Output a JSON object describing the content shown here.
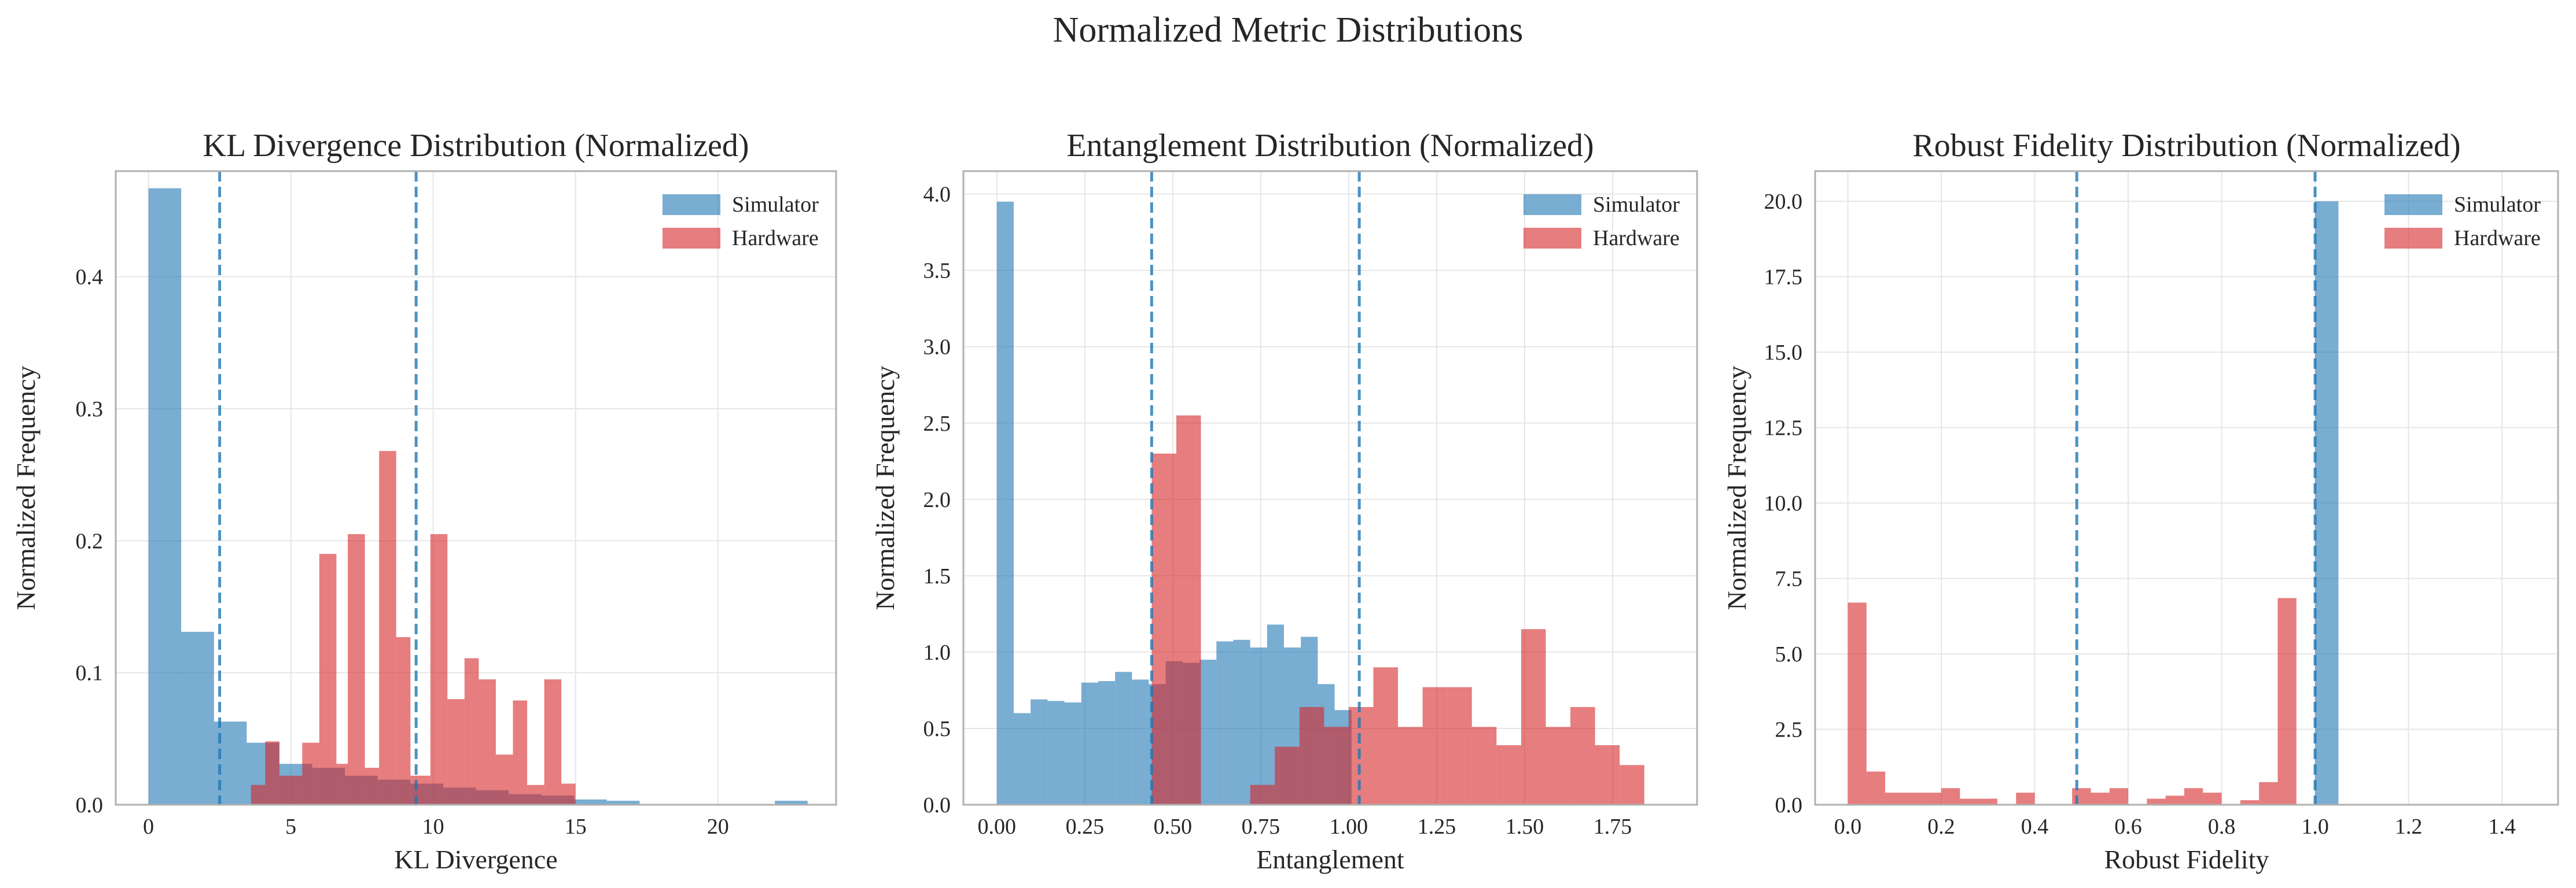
{
  "figure_title": "Normalized Metric Distributions",
  "colors": {
    "simulator": "#1f77b4",
    "hardware": "#d62728",
    "mean_line": "#1f77b4",
    "grid": "#e6e6e6",
    "spine": "#b0b0b0"
  },
  "chart_data": [
    {
      "type": "histogram",
      "title": "KL Divergence Distribution (Normalized)",
      "xlabel": "KL Divergence",
      "ylabel": "Normalized Frequency",
      "xlim": [
        -1.15,
        24.15
      ],
      "ylim": [
        0,
        0.48
      ],
      "xticks": [
        0,
        5,
        10,
        15,
        20
      ],
      "xtick_labels": [
        "0",
        "5",
        "10",
        "15",
        "20"
      ],
      "yticks": [
        0.0,
        0.1,
        0.2,
        0.3,
        0.4
      ],
      "ytick_labels": [
        "0.0",
        "0.1",
        "0.2",
        "0.3",
        "0.4"
      ],
      "legend": {
        "position": "upper right",
        "entries": [
          "Simulator",
          "Hardware"
        ]
      },
      "grid": true,
      "mean_lines": [
        2.5,
        9.4
      ],
      "series": [
        {
          "name": "Simulator",
          "color": "#1f77b4",
          "bins": [
            [
              0,
              1.15,
              0.467
            ],
            [
              1.15,
              2.3,
              0.131
            ],
            [
              2.3,
              3.45,
              0.063
            ],
            [
              3.45,
              4.6,
              0.047
            ],
            [
              4.6,
              5.75,
              0.031
            ],
            [
              5.75,
              6.9,
              0.028
            ],
            [
              6.9,
              8.05,
              0.022
            ],
            [
              8.05,
              9.2,
              0.019
            ],
            [
              9.2,
              10.35,
              0.016
            ],
            [
              10.35,
              11.5,
              0.013
            ],
            [
              11.5,
              12.65,
              0.011
            ],
            [
              12.65,
              13.8,
              0.008
            ],
            [
              13.8,
              14.95,
              0.007
            ],
            [
              14.95,
              16.1,
              0.004
            ],
            [
              16.1,
              17.25,
              0.003
            ],
            [
              22.0,
              23.15,
              0.003
            ]
          ]
        },
        {
          "name": "Hardware",
          "color": "#d62728",
          "bins": [
            [
              3.6,
              4.1,
              0.015
            ],
            [
              4.1,
              4.6,
              0.048
            ],
            [
              4.6,
              5.4,
              0.022
            ],
            [
              5.4,
              6.0,
              0.047
            ],
            [
              6.0,
              6.6,
              0.19
            ],
            [
              6.6,
              7.0,
              0.031
            ],
            [
              7.0,
              7.6,
              0.205
            ],
            [
              7.6,
              8.1,
              0.028
            ],
            [
              8.1,
              8.7,
              0.268
            ],
            [
              8.7,
              9.2,
              0.127
            ],
            [
              9.2,
              9.9,
              0.022
            ],
            [
              9.9,
              10.5,
              0.205
            ],
            [
              10.5,
              11.1,
              0.08
            ],
            [
              11.1,
              11.6,
              0.111
            ],
            [
              11.6,
              12.2,
              0.095
            ],
            [
              12.2,
              12.8,
              0.038
            ],
            [
              12.8,
              13.3,
              0.079
            ],
            [
              13.3,
              13.9,
              0.015
            ],
            [
              13.9,
              14.5,
              0.095
            ],
            [
              14.5,
              15.0,
              0.016
            ]
          ]
        }
      ]
    },
    {
      "type": "histogram",
      "title": "Entanglement Distribution (Normalized)",
      "xlabel": "Entanglement",
      "ylabel": "Normalized Frequency",
      "xlim": [
        -0.095,
        1.99
      ],
      "ylim": [
        0,
        4.15
      ],
      "xticks": [
        0.0,
        0.25,
        0.5,
        0.75,
        1.0,
        1.25,
        1.5,
        1.75
      ],
      "xtick_labels": [
        "0.00",
        "0.25",
        "0.50",
        "0.75",
        "1.00",
        "1.25",
        "1.50",
        "1.75"
      ],
      "yticks": [
        0.0,
        0.5,
        1.0,
        1.5,
        2.0,
        2.5,
        3.0,
        3.5,
        4.0
      ],
      "ytick_labels": [
        "0.0",
        "0.5",
        "1.0",
        "1.5",
        "2.0",
        "2.5",
        "3.0",
        "3.5",
        "4.0"
      ],
      "legend": {
        "position": "upper right",
        "entries": [
          "Simulator",
          "Hardware"
        ]
      },
      "grid": true,
      "mean_lines": [
        0.44,
        1.03
      ],
      "series": [
        {
          "name": "Simulator",
          "color": "#1f77b4",
          "bins": [
            [
              0,
              0.048,
              3.95
            ],
            [
              0.048,
              0.096,
              0.6
            ],
            [
              0.096,
              0.144,
              0.69
            ],
            [
              0.144,
              0.192,
              0.68
            ],
            [
              0.192,
              0.24,
              0.67
            ],
            [
              0.24,
              0.288,
              0.8
            ],
            [
              0.288,
              0.336,
              0.81
            ],
            [
              0.336,
              0.384,
              0.87
            ],
            [
              0.384,
              0.432,
              0.82
            ],
            [
              0.432,
              0.48,
              0.79
            ],
            [
              0.48,
              0.528,
              0.94
            ],
            [
              0.528,
              0.576,
              0.93
            ],
            [
              0.576,
              0.624,
              0.95
            ],
            [
              0.624,
              0.672,
              1.07
            ],
            [
              0.672,
              0.72,
              1.08
            ],
            [
              0.72,
              0.768,
              1.03
            ],
            [
              0.768,
              0.816,
              1.18
            ],
            [
              0.816,
              0.864,
              1.03
            ],
            [
              0.864,
              0.912,
              1.1
            ],
            [
              0.912,
              0.96,
              0.79
            ],
            [
              0.96,
              1.008,
              0.62
            ]
          ]
        },
        {
          "name": "Hardware",
          "color": "#d62728",
          "bins": [
            [
              0.44,
              0.51,
              2.3
            ],
            [
              0.51,
              0.58,
              2.55
            ],
            [
              0.58,
              0.65,
              0.0
            ],
            [
              0.65,
              0.72,
              0.0
            ],
            [
              0.72,
              0.79,
              0.13
            ],
            [
              0.79,
              0.86,
              0.38
            ],
            [
              0.86,
              0.93,
              0.64
            ],
            [
              0.93,
              1.0,
              0.51
            ],
            [
              1.0,
              1.07,
              0.64
            ],
            [
              1.07,
              1.14,
              0.9
            ],
            [
              1.14,
              1.21,
              0.51
            ],
            [
              1.21,
              1.28,
              0.77
            ],
            [
              1.28,
              1.35,
              0.77
            ],
            [
              1.35,
              1.42,
              0.51
            ],
            [
              1.42,
              1.49,
              0.39
            ],
            [
              1.49,
              1.56,
              1.15
            ],
            [
              1.56,
              1.63,
              0.51
            ],
            [
              1.63,
              1.7,
              0.64
            ],
            [
              1.7,
              1.77,
              0.39
            ],
            [
              1.77,
              1.84,
              0.26
            ]
          ]
        }
      ]
    },
    {
      "type": "histogram",
      "title": "Robust Fidelity Distribution (Normalized)",
      "xlabel": "Robust Fidelity",
      "ylabel": "Normalized Frequency",
      "xlim": [
        -0.07,
        1.52
      ],
      "ylim": [
        0,
        21
      ],
      "xticks": [
        0.0,
        0.2,
        0.4,
        0.6,
        0.8,
        1.0,
        1.2,
        1.4
      ],
      "xtick_labels": [
        "0.0",
        "0.2",
        "0.4",
        "0.6",
        "0.8",
        "1.0",
        "1.2",
        "1.4"
      ],
      "yticks": [
        0.0,
        2.5,
        5.0,
        7.5,
        10.0,
        12.5,
        15.0,
        17.5,
        20.0
      ],
      "ytick_labels": [
        "0.0",
        "2.5",
        "5.0",
        "7.5",
        "10.0",
        "12.5",
        "15.0",
        "17.5",
        "20.0"
      ],
      "legend": {
        "position": "upper right",
        "entries": [
          "Simulator",
          "Hardware"
        ]
      },
      "grid": true,
      "mean_lines": [
        0.49,
        1.0
      ],
      "series": [
        {
          "name": "Simulator",
          "color": "#1f77b4",
          "bins": [
            [
              1.0,
              1.05,
              20.0
            ]
          ]
        },
        {
          "name": "Hardware",
          "color": "#d62728",
          "bins": [
            [
              0,
              0.04,
              6.7
            ],
            [
              0.04,
              0.08,
              1.1
            ],
            [
              0.08,
              0.12,
              0.4
            ],
            [
              0.12,
              0.16,
              0.4
            ],
            [
              0.16,
              0.2,
              0.4
            ],
            [
              0.2,
              0.24,
              0.55
            ],
            [
              0.24,
              0.28,
              0.2
            ],
            [
              0.28,
              0.32,
              0.2
            ],
            [
              0.36,
              0.4,
              0.4
            ],
            [
              0.48,
              0.52,
              0.55
            ],
            [
              0.52,
              0.56,
              0.4
            ],
            [
              0.56,
              0.6,
              0.55
            ],
            [
              0.64,
              0.68,
              0.2
            ],
            [
              0.68,
              0.72,
              0.3
            ],
            [
              0.72,
              0.76,
              0.55
            ],
            [
              0.76,
              0.8,
              0.4
            ],
            [
              0.84,
              0.88,
              0.15
            ],
            [
              0.88,
              0.92,
              0.75
            ],
            [
              0.92,
              0.96,
              6.85
            ]
          ]
        }
      ]
    }
  ]
}
